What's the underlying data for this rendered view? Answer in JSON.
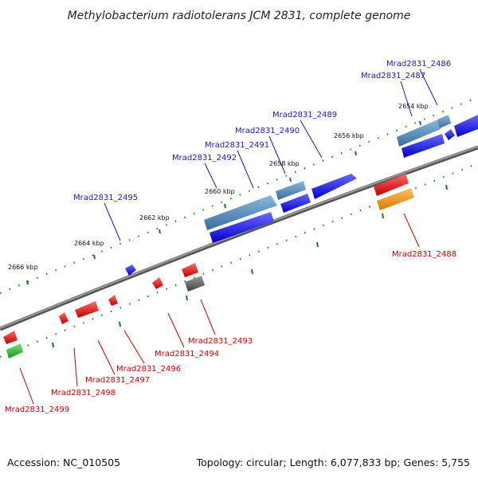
{
  "title": "Methylobacterium radiotolerans JCM 2831, complete genome",
  "scale_labels": [
    "2654 kbp",
    "2656 kbp",
    "2658 kbp",
    "2660 kbp",
    "2662 kbp",
    "2664 kbp",
    "2666 kbp"
  ],
  "genes_forward": [
    {
      "label": "Mrad2831_2486",
      "color": "#1a1ad8"
    },
    {
      "label": "Mrad2831_2487",
      "color": "#4a86b8"
    },
    {
      "label": "Mrad2831_2489",
      "color": "#1a1ad8"
    },
    {
      "label": "Mrad2831_2490",
      "color": "#1a1ad8"
    },
    {
      "label": "Mrad2831_2491",
      "color": "#1a1ad8"
    },
    {
      "label": "Mrad2831_2492",
      "color": "#4a86b8"
    },
    {
      "label": "Mrad2831_2495",
      "color": "#1a1ad8"
    }
  ],
  "genes_reverse": [
    {
      "label": "Mrad2831_2488",
      "color": "#e88a0e"
    },
    {
      "label": "Mrad2831_2493",
      "color": "#606060"
    },
    {
      "label": "Mrad2831_2494",
      "color": "#e01010"
    },
    {
      "label": "Mrad2831_2496",
      "color": "#e01010"
    },
    {
      "label": "Mrad2831_2497",
      "color": "#e01010"
    },
    {
      "label": "Mrad2831_2498",
      "color": "#e01010"
    },
    {
      "label": "Mrad2831_2499",
      "color": "#2fb52f"
    }
  ],
  "colors": {
    "forward_label": "#1a1ab0",
    "reverse_label": "#cc0000",
    "backbone": "#7a7a7a",
    "tick": "#1e7a1e"
  },
  "footer": {
    "accession": "Accession: NC_010505",
    "topology": "Topology: circular; Length: 6,077,833 bp; Genes: 5,755"
  }
}
